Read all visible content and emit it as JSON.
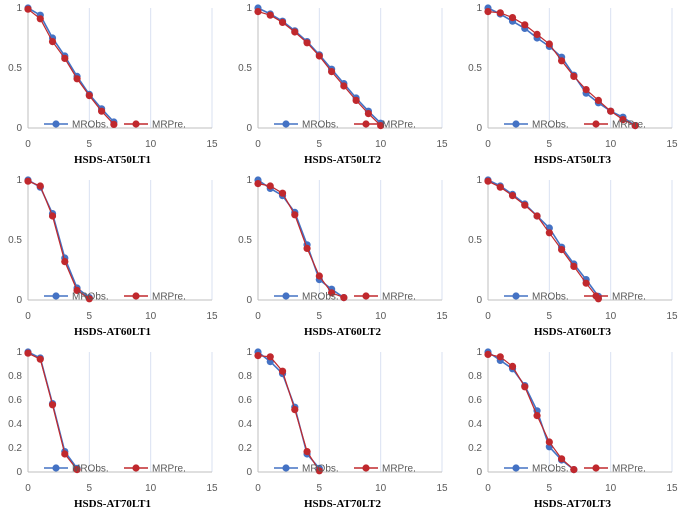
{
  "legend": {
    "obs": "MRObs.",
    "pre": "MRPre."
  },
  "colors": {
    "obs": "#4472c4",
    "pre": "#c0282d",
    "grid": "#d9e1f2",
    "axis": "#bfbfbf"
  },
  "chart_data": [
    {
      "type": "line",
      "title": "HSDS-AT50LT1",
      "xlim": [
        0,
        15
      ],
      "xticks": [
        0,
        5,
        10,
        15
      ],
      "ylim": [
        0,
        1
      ],
      "yticks": [
        0,
        0.5,
        1
      ],
      "ytick_labels": [
        "0",
        "0.5",
        "1"
      ],
      "series": [
        {
          "name": "MRObs.",
          "x": [
            0,
            1,
            2,
            3,
            4,
            5,
            6,
            7
          ],
          "y": [
            1.0,
            0.94,
            0.75,
            0.6,
            0.43,
            0.28,
            0.16,
            0.05
          ]
        },
        {
          "name": "MRPre.",
          "x": [
            0,
            1,
            2,
            3,
            4,
            5,
            6,
            7
          ],
          "y": [
            0.99,
            0.91,
            0.72,
            0.58,
            0.41,
            0.27,
            0.14,
            0.03
          ]
        }
      ]
    },
    {
      "type": "line",
      "title": "HSDS-AT50LT2",
      "xlim": [
        0,
        15
      ],
      "xticks": [
        0,
        5,
        10,
        15
      ],
      "ylim": [
        0,
        1
      ],
      "yticks": [
        0,
        0.5,
        1
      ],
      "ytick_labels": [
        "0",
        "0.5",
        "1"
      ],
      "series": [
        {
          "name": "MRObs.",
          "x": [
            0,
            1,
            2,
            3,
            4,
            5,
            6,
            7,
            8,
            9,
            10
          ],
          "y": [
            1.0,
            0.95,
            0.89,
            0.81,
            0.72,
            0.61,
            0.49,
            0.37,
            0.25,
            0.14,
            0.04
          ]
        },
        {
          "name": "MRPre.",
          "x": [
            0,
            1,
            2,
            3,
            4,
            5,
            6,
            7,
            8,
            9,
            10
          ],
          "y": [
            0.97,
            0.94,
            0.88,
            0.8,
            0.71,
            0.6,
            0.47,
            0.35,
            0.23,
            0.12,
            0.02
          ]
        }
      ]
    },
    {
      "type": "line",
      "title": "HSDS-AT50LT3",
      "xlim": [
        0,
        15
      ],
      "xticks": [
        0,
        5,
        10,
        15
      ],
      "ylim": [
        0,
        1
      ],
      "yticks": [
        0,
        0.5,
        1
      ],
      "ytick_labels": [
        "0",
        "0.5",
        "1"
      ],
      "series": [
        {
          "name": "MRObs.",
          "x": [
            0,
            1,
            2,
            3,
            4,
            5,
            6,
            7,
            8,
            9,
            10,
            11,
            12
          ],
          "y": [
            1.0,
            0.95,
            0.89,
            0.83,
            0.75,
            0.68,
            0.59,
            0.44,
            0.29,
            0.21,
            0.14,
            0.09,
            0.02
          ]
        },
        {
          "name": "MRPre.",
          "x": [
            0,
            1,
            2,
            3,
            4,
            5,
            6,
            7,
            8,
            9,
            10,
            11,
            12
          ],
          "y": [
            0.97,
            0.96,
            0.92,
            0.86,
            0.78,
            0.7,
            0.56,
            0.43,
            0.32,
            0.23,
            0.14,
            0.07,
            0.02
          ]
        }
      ]
    },
    {
      "type": "line",
      "title": "HSDS-AT60LT1",
      "xlim": [
        0,
        15
      ],
      "xticks": [
        0,
        5,
        10,
        15
      ],
      "ylim": [
        0,
        1
      ],
      "yticks": [
        0,
        0.5,
        1
      ],
      "ytick_labels": [
        "0",
        "0.5",
        "1"
      ],
      "series": [
        {
          "name": "MRObs.",
          "x": [
            0,
            1,
            2,
            3,
            4,
            5
          ],
          "y": [
            1.0,
            0.94,
            0.72,
            0.35,
            0.1,
            0.02
          ]
        },
        {
          "name": "MRPre.",
          "x": [
            0,
            1,
            2,
            3,
            4,
            5
          ],
          "y": [
            0.99,
            0.95,
            0.7,
            0.32,
            0.08,
            0.01
          ]
        }
      ]
    },
    {
      "type": "line",
      "title": "HSDS-AT60LT2",
      "xlim": [
        0,
        15
      ],
      "xticks": [
        0,
        5,
        10,
        15
      ],
      "ylim": [
        0,
        1
      ],
      "yticks": [
        0,
        0.5,
        1
      ],
      "ytick_labels": [
        "0",
        "0.5",
        "1"
      ],
      "series": [
        {
          "name": "MRObs.",
          "x": [
            0,
            1,
            2,
            3,
            4,
            5,
            6,
            7
          ],
          "y": [
            1.0,
            0.93,
            0.87,
            0.73,
            0.46,
            0.17,
            0.09,
            0.02
          ]
        },
        {
          "name": "MRPre.",
          "x": [
            0,
            1,
            2,
            3,
            4,
            5,
            6,
            7
          ],
          "y": [
            0.97,
            0.95,
            0.89,
            0.71,
            0.43,
            0.2,
            0.06,
            0.02
          ]
        }
      ]
    },
    {
      "type": "line",
      "title": "HSDS-AT60LT3",
      "xlim": [
        0,
        15
      ],
      "xticks": [
        0,
        5,
        10,
        15
      ],
      "ylim": [
        0,
        1
      ],
      "yticks": [
        0,
        0.5,
        1
      ],
      "ytick_labels": [
        "0",
        "0.5",
        "1"
      ],
      "series": [
        {
          "name": "MRObs.",
          "x": [
            0,
            1,
            2,
            3,
            4,
            5,
            6,
            7,
            8,
            9
          ],
          "y": [
            1.0,
            0.95,
            0.88,
            0.8,
            0.7,
            0.6,
            0.44,
            0.3,
            0.17,
            0.03
          ]
        },
        {
          "name": "MRPre.",
          "x": [
            0,
            1,
            2,
            3,
            4,
            5,
            6,
            7,
            8,
            9
          ],
          "y": [
            0.99,
            0.94,
            0.87,
            0.79,
            0.7,
            0.56,
            0.42,
            0.28,
            0.14,
            0.01
          ]
        }
      ]
    },
    {
      "type": "line",
      "title": "HSDS-AT70LT1",
      "xlim": [
        0,
        15
      ],
      "xticks": [
        0,
        5,
        10,
        15
      ],
      "ylim": [
        0,
        1
      ],
      "yticks": [
        0,
        0.2,
        0.4,
        0.6,
        0.8,
        1
      ],
      "ytick_labels": [
        "0",
        "0.2",
        "0.4",
        "0.6",
        "0.8",
        "1"
      ],
      "series": [
        {
          "name": "MRObs.",
          "x": [
            0,
            1,
            2,
            3,
            4
          ],
          "y": [
            1.0,
            0.95,
            0.57,
            0.17,
            0.03
          ]
        },
        {
          "name": "MRPre.",
          "x": [
            0,
            1,
            2,
            3,
            4
          ],
          "y": [
            0.99,
            0.94,
            0.56,
            0.15,
            0.02
          ]
        }
      ]
    },
    {
      "type": "line",
      "title": "HSDS-AT70LT2",
      "xlim": [
        0,
        15
      ],
      "xticks": [
        0,
        5,
        10,
        15
      ],
      "ylim": [
        0,
        1
      ],
      "yticks": [
        0,
        0.2,
        0.4,
        0.6,
        0.8,
        1
      ],
      "ytick_labels": [
        "0",
        "0.2",
        "0.4",
        "0.6",
        "0.8",
        "1"
      ],
      "series": [
        {
          "name": "MRObs.",
          "x": [
            0,
            1,
            2,
            3,
            4,
            5
          ],
          "y": [
            1.0,
            0.92,
            0.82,
            0.54,
            0.15,
            0.03
          ]
        },
        {
          "name": "MRPre.",
          "x": [
            0,
            1,
            2,
            3,
            4,
            5
          ],
          "y": [
            0.97,
            0.96,
            0.84,
            0.52,
            0.17,
            0.01
          ]
        }
      ]
    },
    {
      "type": "line",
      "title": "HSDS-AT70LT3",
      "xlim": [
        0,
        15
      ],
      "xticks": [
        0,
        5,
        10,
        15
      ],
      "ylim": [
        0,
        1
      ],
      "yticks": [
        0,
        0.2,
        0.4,
        0.6,
        0.8,
        1
      ],
      "ytick_labels": [
        "0",
        "0.2",
        "0.4",
        "0.6",
        "0.8",
        "1"
      ],
      "series": [
        {
          "name": "MRObs.",
          "x": [
            0,
            1,
            2,
            3,
            4,
            5,
            6,
            7
          ],
          "y": [
            1.0,
            0.93,
            0.86,
            0.72,
            0.51,
            0.21,
            0.1,
            0.02
          ]
        },
        {
          "name": "MRPre.",
          "x": [
            0,
            1,
            2,
            3,
            4,
            5,
            6,
            7
          ],
          "y": [
            0.98,
            0.96,
            0.88,
            0.71,
            0.47,
            0.25,
            0.11,
            0.02
          ]
        }
      ]
    }
  ]
}
